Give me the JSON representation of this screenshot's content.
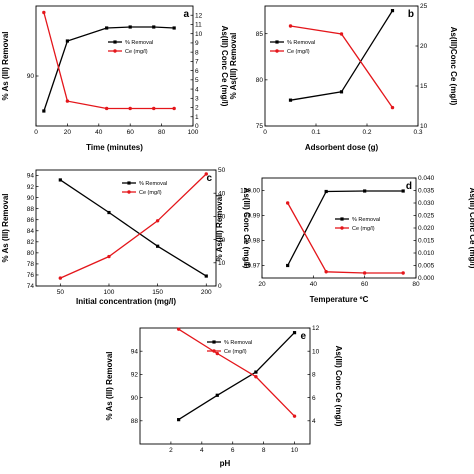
{
  "colors": {
    "removal": "#000000",
    "ce": "#e4161b",
    "axis": "#000000"
  },
  "chart_data": [
    {
      "id": "a",
      "type": "line",
      "panel_label": "a",
      "xlabel": "Time (minutes)",
      "ylabel_left": "% As (III) Removal",
      "ylabel_right": "As(III) Conc Ce (mg/l)",
      "xlim": [
        0,
        100
      ],
      "xticks": [
        0,
        20,
        40,
        60,
        80,
        100
      ],
      "ylim_left": [
        85,
        97
      ],
      "yticks_left": [
        90
      ],
      "ylim_right": [
        0,
        13
      ],
      "yticks_right": [
        0,
        1,
        2,
        3,
        4,
        5,
        6,
        7,
        8,
        9,
        10,
        11,
        12
      ],
      "legend_position": "right",
      "series": [
        {
          "name": "% Removal",
          "axis": "left",
          "color": "#000000",
          "x": [
            5,
            20,
            45,
            60,
            75,
            88
          ],
          "values": [
            86.5,
            93.5,
            94.8,
            94.9,
            94.9,
            94.8
          ]
        },
        {
          "name": "Ce (mg/l)",
          "axis": "right",
          "color": "#e4161b",
          "x": [
            5,
            20,
            45,
            60,
            75,
            88
          ],
          "values": [
            12.3,
            2.7,
            1.9,
            1.9,
            1.9,
            1.9
          ]
        }
      ]
    },
    {
      "id": "b",
      "type": "line",
      "panel_label": "b",
      "xlabel": "Adsorbent dose (g)",
      "ylabel_left": "% As(III) Removal",
      "ylabel_right": "As(III)Conc Ce (mg/l)",
      "xlim": [
        0,
        0.3
      ],
      "xticks": [
        0.0,
        0.1,
        0.2,
        0.3
      ],
      "ylim_left": [
        75,
        88
      ],
      "yticks_left": [
        75,
        80,
        85
      ],
      "ylim_right": [
        10,
        25
      ],
      "yticks_right": [
        10,
        15,
        20,
        25
      ],
      "legend_position": "left",
      "series": [
        {
          "name": "% Removal",
          "axis": "left",
          "color": "#000000",
          "x": [
            0.05,
            0.15,
            0.25
          ],
          "values": [
            77.8,
            78.7,
            87.5
          ]
        },
        {
          "name": "Ce (mg/l)",
          "axis": "right",
          "color": "#e4161b",
          "x": [
            0.05,
            0.15,
            0.25
          ],
          "values": [
            22.5,
            21.5,
            12.3
          ]
        }
      ]
    },
    {
      "id": "c",
      "type": "line",
      "panel_label": "c",
      "xlabel": "Initial concentration (mg/l)",
      "ylabel_left": "% As (III) Removal",
      "ylabel_right": "As(III) Conc Ce (mg/l)",
      "xlim": [
        25,
        210
      ],
      "xticks": [
        50,
        100,
        150,
        200
      ],
      "ylim_left": [
        74,
        95
      ],
      "yticks_left": [
        74,
        76,
        78,
        80,
        82,
        84,
        86,
        88,
        90,
        92,
        94
      ],
      "ylim_right": [
        0,
        50
      ],
      "yticks_right": [
        0,
        10,
        20,
        30,
        40,
        50
      ],
      "legend_position": "top-center",
      "series": [
        {
          "name": "% Removal",
          "axis": "left",
          "color": "#000000",
          "x": [
            50,
            100,
            150,
            200
          ],
          "values": [
            93.2,
            87.3,
            81.2,
            75.8
          ]
        },
        {
          "name": "Ce (mg/l)",
          "axis": "right",
          "color": "#e4161b",
          "x": [
            50,
            100,
            150,
            200
          ],
          "values": [
            3.4,
            12.7,
            28.1,
            48.3
          ]
        }
      ]
    },
    {
      "id": "d",
      "type": "line",
      "panel_label": "d",
      "xlabel": "Temperature ºC",
      "ylabel_left": "% As(III) Removal",
      "ylabel_right": "As(III) Conc Ce (mg/l)",
      "xlim": [
        20,
        80
      ],
      "xticks": [
        20,
        40,
        60,
        80
      ],
      "ylim_left": [
        99.965,
        100.005
      ],
      "yticks_left": [
        99.97,
        99.98,
        99.99,
        100.0
      ],
      "yticklabels_left": [
        "99.97",
        "99.98",
        "99.99",
        "100.00"
      ],
      "ylim_right": [
        0,
        0.04
      ],
      "yticks_right": [
        0,
        0.005,
        0.01,
        0.015,
        0.02,
        0.025,
        0.03,
        0.035,
        0.04
      ],
      "yticklabels_right": [
        "0.000",
        "0.005",
        "0.010",
        "0.015",
        "0.020",
        "0.025",
        "0.030",
        "0.035",
        "0.040"
      ],
      "legend_position": "center-right",
      "series": [
        {
          "name": "% Removal",
          "axis": "left",
          "color": "#000000",
          "x": [
            30,
            45,
            60,
            75
          ],
          "values": [
            99.97,
            99.9996,
            99.9998,
            99.9998
          ]
        },
        {
          "name": "Ce (mg/l)",
          "axis": "right",
          "color": "#e4161b",
          "x": [
            30,
            45,
            60,
            75
          ],
          "values": [
            0.03,
            0.0025,
            0.002,
            0.002
          ]
        }
      ]
    },
    {
      "id": "e",
      "type": "line",
      "panel_label": "e",
      "xlabel": "pH",
      "ylabel_left": "% As (III) Removal",
      "ylabel_right": "As(III) Conc Ce (mg/l)",
      "xlim": [
        0,
        11
      ],
      "xticks": [
        2,
        4,
        6,
        8,
        10
      ],
      "ylim_left": [
        86,
        96
      ],
      "yticks_left": [
        88,
        90,
        92,
        94
      ],
      "ylim_right": [
        2,
        12
      ],
      "yticks_right": [
        4,
        6,
        8,
        10,
        12
      ],
      "legend_position": "top-center",
      "series": [
        {
          "name": "% Removal",
          "axis": "left",
          "color": "#000000",
          "x": [
            2.5,
            5,
            7.5,
            10
          ],
          "values": [
            88.1,
            90.2,
            92.2,
            95.6
          ]
        },
        {
          "name": "Ce (mg/l)",
          "axis": "right",
          "color": "#e4161b",
          "x": [
            2.5,
            5,
            7.5,
            10
          ],
          "values": [
            11.9,
            9.8,
            7.8,
            4.4
          ]
        }
      ]
    }
  ]
}
